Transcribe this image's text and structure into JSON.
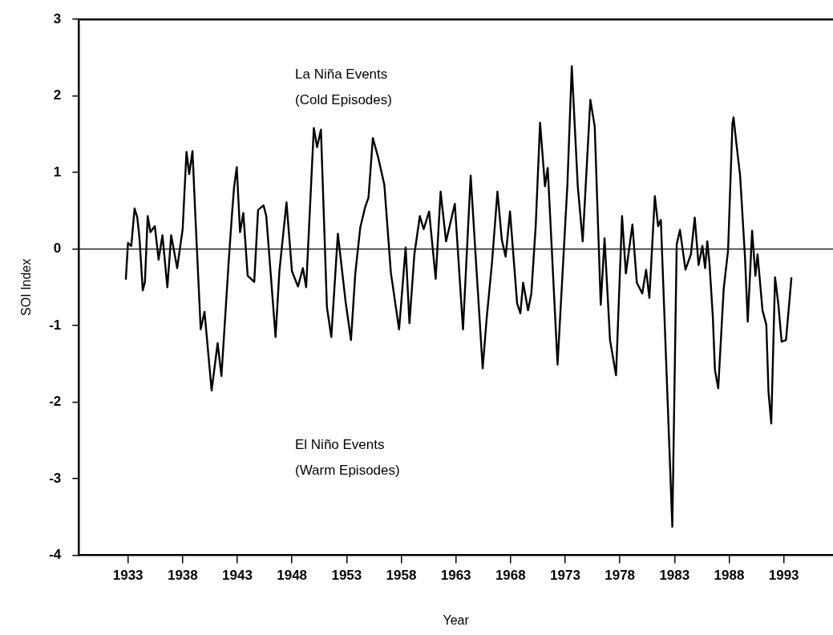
{
  "chart_data": {
    "type": "line",
    "xlabel": "Year",
    "ylabel": "SOI Index",
    "annotations": [
      "La Niña Events\n(Cold Episodes)",
      "El Niño Events\n(Warm Episodes)"
    ],
    "x": [
      1932.8,
      1933.0,
      1933.3,
      1933.6,
      1933.85,
      1934.05,
      1934.35,
      1934.55,
      1934.8,
      1935.05,
      1935.45,
      1935.8,
      1936.15,
      1936.6,
      1936.95,
      1937.5,
      1938.0,
      1938.35,
      1938.6,
      1938.9,
      1939.15,
      1939.65,
      1940.0,
      1940.65,
      1941.2,
      1941.55,
      1942.2,
      1942.5,
      1942.7,
      1942.95,
      1943.25,
      1943.55,
      1943.95,
      1944.55,
      1944.9,
      1945.4,
      1945.65,
      1946.5,
      1946.85,
      1947.5,
      1948.0,
      1948.55,
      1949.0,
      1949.3,
      1950.0,
      1950.3,
      1950.65,
      1951.2,
      1951.6,
      1952.2,
      1952.9,
      1953.4,
      1953.8,
      1954.25,
      1954.7,
      1955.0,
      1955.4,
      1955.9,
      1956.45,
      1957.05,
      1957.8,
      1958.4,
      1958.75,
      1959.2,
      1959.7,
      1960.05,
      1960.55,
      1961.15,
      1961.6,
      1962.1,
      1962.9,
      1963.65,
      1964.35,
      1964.85,
      1965.45,
      1965.8,
      1966.3,
      1966.8,
      1967.2,
      1967.55,
      1967.95,
      1968.6,
      1968.9,
      1969.15,
      1969.6,
      1969.9,
      1970.3,
      1970.7,
      1971.15,
      1971.4,
      1972.3,
      1973.2,
      1973.6,
      1974.15,
      1974.6,
      1975.3,
      1975.7,
      1976.25,
      1976.6,
      1977.1,
      1977.65,
      1978.2,
      1978.55,
      1979.15,
      1979.55,
      1980.05,
      1980.4,
      1980.7,
      1981.2,
      1981.5,
      1981.75,
      1982.8,
      1983.2,
      1983.5,
      1984.0,
      1984.5,
      1984.85,
      1985.2,
      1985.55,
      1985.8,
      1986.0,
      1986.2,
      1986.5,
      1986.7,
      1987.0,
      1987.5,
      1987.9,
      1988.3,
      1988.4,
      1988.7,
      1989.0,
      1989.45,
      1989.7,
      1990.1,
      1990.4,
      1990.6,
      1991.05,
      1991.4,
      1991.6,
      1991.85,
      1992.2,
      1992.5,
      1992.8,
      1993.2,
      1993.7
    ],
    "series": [
      {
        "color": "#000000",
        "values": [
          -0.4,
          0.08,
          0.04,
          0.53,
          0.41,
          0.14,
          -0.54,
          -0.43,
          0.43,
          0.22,
          0.3,
          -0.14,
          0.18,
          -0.5,
          0.18,
          -0.25,
          0.26,
          1.27,
          0.98,
          1.28,
          0.47,
          -1.05,
          -0.82,
          -1.85,
          -1.23,
          -1.66,
          -0.19,
          0.43,
          0.8,
          1.07,
          0.22,
          0.47,
          -0.35,
          -0.43,
          0.51,
          0.57,
          0.43,
          -1.15,
          -0.29,
          0.61,
          -0.29,
          -0.49,
          -0.25,
          -0.5,
          1.58,
          1.33,
          1.56,
          -0.76,
          -1.15,
          0.2,
          -0.68,
          -1.19,
          -0.31,
          0.28,
          0.55,
          0.67,
          1.45,
          1.19,
          0.84,
          -0.31,
          -1.05,
          0.02,
          -0.97,
          -0.07,
          0.43,
          0.26,
          0.49,
          -0.39,
          0.75,
          0.1,
          0.59,
          -1.05,
          0.96,
          -0.19,
          -1.56,
          -0.93,
          -0.18,
          0.75,
          0.12,
          -0.1,
          0.49,
          -0.71,
          -0.84,
          -0.44,
          -0.8,
          -0.58,
          0.3,
          1.65,
          0.82,
          1.06,
          -1.51,
          0.84,
          2.39,
          0.82,
          0.1,
          1.95,
          1.6,
          -0.73,
          0.14,
          -1.19,
          -1.65,
          0.43,
          -0.32,
          0.32,
          -0.44,
          -0.58,
          -0.27,
          -0.64,
          0.69,
          0.3,
          0.38,
          -3.63,
          0.06,
          0.25,
          -0.27,
          -0.07,
          0.41,
          -0.21,
          0.04,
          -0.25,
          0.1,
          -0.19,
          -0.87,
          -1.58,
          -1.82,
          -0.52,
          -0.02,
          1.64,
          1.72,
          1.33,
          0.96,
          -0.11,
          -0.95,
          0.24,
          -0.35,
          -0.07,
          -0.8,
          -0.99,
          -1.87,
          -2.28,
          -0.37,
          -0.72,
          -1.21,
          -1.19,
          -0.37
        ]
      }
    ],
    "xlim": [
      1928.5,
      1997.5
    ],
    "xticks": [
      1933,
      1938,
      1943,
      1948,
      1953,
      1958,
      1963,
      1968,
      1973,
      1978,
      1983,
      1988,
      1993
    ],
    "ylim": [
      -4,
      3
    ],
    "yticks": [
      -4,
      -3,
      -2,
      -1,
      0,
      1,
      2,
      3
    ],
    "ref_lines": [
      {
        "axis": "y",
        "value": 0,
        "color": "#000000",
        "line_style": "solid"
      }
    ],
    "grid": false,
    "legend": false,
    "marker": "none",
    "line_style": "solid"
  }
}
